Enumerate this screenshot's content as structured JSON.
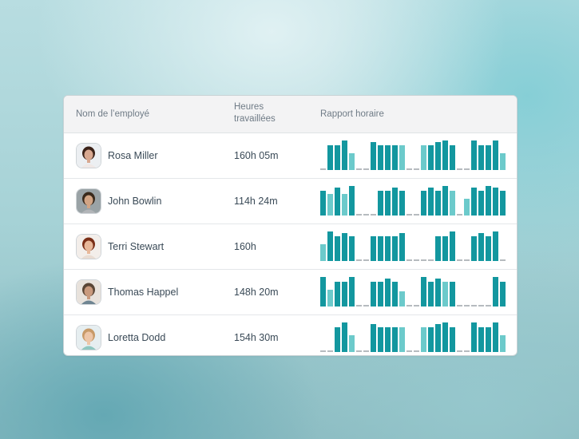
{
  "table": {
    "headers": {
      "name": "Nom de l’employé",
      "hours": "Heures travaillées",
      "report": "Rapport horaire"
    },
    "colors": {
      "dark": "#13979f",
      "light": "#6ccacb",
      "zero": "#b6bbbf"
    },
    "rows": [
      {
        "name": "Rosa Miller",
        "hours": "160h 05m",
        "avatar": {
          "hair": "#3b2218",
          "skin": "#d8a890",
          "shirt": "#f0e8e6",
          "bg": "#eceff2"
        },
        "bars": [
          [
            0,
            "z"
          ],
          [
            0.85,
            "d"
          ],
          [
            0.85,
            "d"
          ],
          [
            1,
            "d"
          ],
          [
            0.57,
            "l"
          ],
          [
            0,
            "z"
          ],
          [
            0,
            "z"
          ],
          [
            0.95,
            "d"
          ],
          [
            0.85,
            "d"
          ],
          [
            0.85,
            "d"
          ],
          [
            0.85,
            "d"
          ],
          [
            0.85,
            "l"
          ],
          [
            0,
            "z"
          ],
          [
            0,
            "z"
          ],
          [
            0.85,
            "l"
          ],
          [
            0.85,
            "d"
          ],
          [
            0.95,
            "d"
          ],
          [
            1,
            "d"
          ],
          [
            0.85,
            "d"
          ],
          [
            0,
            "z"
          ],
          [
            0,
            "z"
          ],
          [
            1,
            "d"
          ],
          [
            0.85,
            "d"
          ],
          [
            0.85,
            "d"
          ],
          [
            1,
            "d"
          ],
          [
            0.57,
            "l"
          ]
        ]
      },
      {
        "name": "John Bowlin",
        "hours": "114h 24m",
        "avatar": {
          "hair": "#3a2a1c",
          "skin": "#d2a585",
          "shirt": "#b2b5b8",
          "bg": "#9aa3a6"
        },
        "bars": [
          [
            0.85,
            "d"
          ],
          [
            0.72,
            "l"
          ],
          [
            0.95,
            "d"
          ],
          [
            0.72,
            "l"
          ],
          [
            1,
            "d"
          ],
          [
            0,
            "z"
          ],
          [
            0,
            "z"
          ],
          [
            0,
            "z"
          ],
          [
            0.85,
            "d"
          ],
          [
            0.85,
            "d"
          ],
          [
            0.95,
            "d"
          ],
          [
            0.85,
            "d"
          ],
          [
            0,
            "z"
          ],
          [
            0,
            "z"
          ],
          [
            0.85,
            "d"
          ],
          [
            0.95,
            "d"
          ],
          [
            0.85,
            "d"
          ],
          [
            1,
            "d"
          ],
          [
            0.85,
            "l"
          ],
          [
            0,
            "z"
          ],
          [
            0.57,
            "l"
          ],
          [
            0.95,
            "d"
          ],
          [
            0.85,
            "d"
          ],
          [
            1,
            "d"
          ],
          [
            0.95,
            "d"
          ],
          [
            0.85,
            "d"
          ]
        ]
      },
      {
        "name": "Terri Stewart",
        "hours": "160h",
        "avatar": {
          "hair": "#7a2e16",
          "skin": "#e8b89a",
          "shirt": "#e9dcd2",
          "bg": "#f3eeea"
        },
        "bars": [
          [
            0.57,
            "l"
          ],
          [
            1,
            "d"
          ],
          [
            0.85,
            "d"
          ],
          [
            0.95,
            "d"
          ],
          [
            0.85,
            "d"
          ],
          [
            0,
            "z"
          ],
          [
            0,
            "z"
          ],
          [
            0.85,
            "d"
          ],
          [
            0.85,
            "d"
          ],
          [
            0.85,
            "d"
          ],
          [
            0.85,
            "d"
          ],
          [
            0.95,
            "d"
          ],
          [
            0,
            "z"
          ],
          [
            0,
            "z"
          ],
          [
            0,
            "z"
          ],
          [
            0,
            "z"
          ],
          [
            0.85,
            "d"
          ],
          [
            0.85,
            "d"
          ],
          [
            1,
            "d"
          ],
          [
            0,
            "z"
          ],
          [
            0,
            "z"
          ],
          [
            0.85,
            "d"
          ],
          [
            0.95,
            "d"
          ],
          [
            0.85,
            "d"
          ],
          [
            1,
            "d"
          ],
          [
            0,
            "z"
          ]
        ]
      },
      {
        "name": "Thomas Happel",
        "hours": "148h 20m",
        "avatar": {
          "hair": "#5a4636",
          "skin": "#c99a7e",
          "shirt": "#6f8592",
          "bg": "#e8e2dc"
        },
        "bars": [
          [
            1,
            "d"
          ],
          [
            0.57,
            "l"
          ],
          [
            0.85,
            "d"
          ],
          [
            0.85,
            "d"
          ],
          [
            1,
            "d"
          ],
          [
            0,
            "z"
          ],
          [
            0,
            "z"
          ],
          [
            0.85,
            "d"
          ],
          [
            0.85,
            "d"
          ],
          [
            0.95,
            "d"
          ],
          [
            0.85,
            "d"
          ],
          [
            0.5,
            "l"
          ],
          [
            0,
            "z"
          ],
          [
            0,
            "z"
          ],
          [
            1,
            "d"
          ],
          [
            0.85,
            "d"
          ],
          [
            0.95,
            "d"
          ],
          [
            0.85,
            "l"
          ],
          [
            0.85,
            "d"
          ],
          [
            0,
            "z"
          ],
          [
            0,
            "z"
          ],
          [
            0,
            "z"
          ],
          [
            0,
            "z"
          ],
          [
            0,
            "z"
          ],
          [
            1,
            "d"
          ],
          [
            0.85,
            "d"
          ]
        ]
      },
      {
        "name": "Loretta Dodd",
        "hours": "154h 30m",
        "avatar": {
          "hair": "#c89a68",
          "skin": "#edc6a8",
          "shirt": "#8fc7c0",
          "bg": "#e6eef0"
        },
        "bars": [
          [
            0,
            "z"
          ],
          [
            0,
            "z"
          ],
          [
            0.85,
            "d"
          ],
          [
            1,
            "d"
          ],
          [
            0.57,
            "l"
          ],
          [
            0,
            "z"
          ],
          [
            0,
            "z"
          ],
          [
            0.95,
            "d"
          ],
          [
            0.85,
            "d"
          ],
          [
            0.85,
            "d"
          ],
          [
            0.85,
            "d"
          ],
          [
            0.85,
            "l"
          ],
          [
            0,
            "z"
          ],
          [
            0,
            "z"
          ],
          [
            0.85,
            "l"
          ],
          [
            0.85,
            "d"
          ],
          [
            0.95,
            "d"
          ],
          [
            1,
            "d"
          ],
          [
            0.85,
            "d"
          ],
          [
            0,
            "z"
          ],
          [
            0,
            "z"
          ],
          [
            1,
            "d"
          ],
          [
            0.85,
            "d"
          ],
          [
            0.85,
            "d"
          ],
          [
            1,
            "d"
          ],
          [
            0.57,
            "l"
          ]
        ]
      }
    ]
  }
}
